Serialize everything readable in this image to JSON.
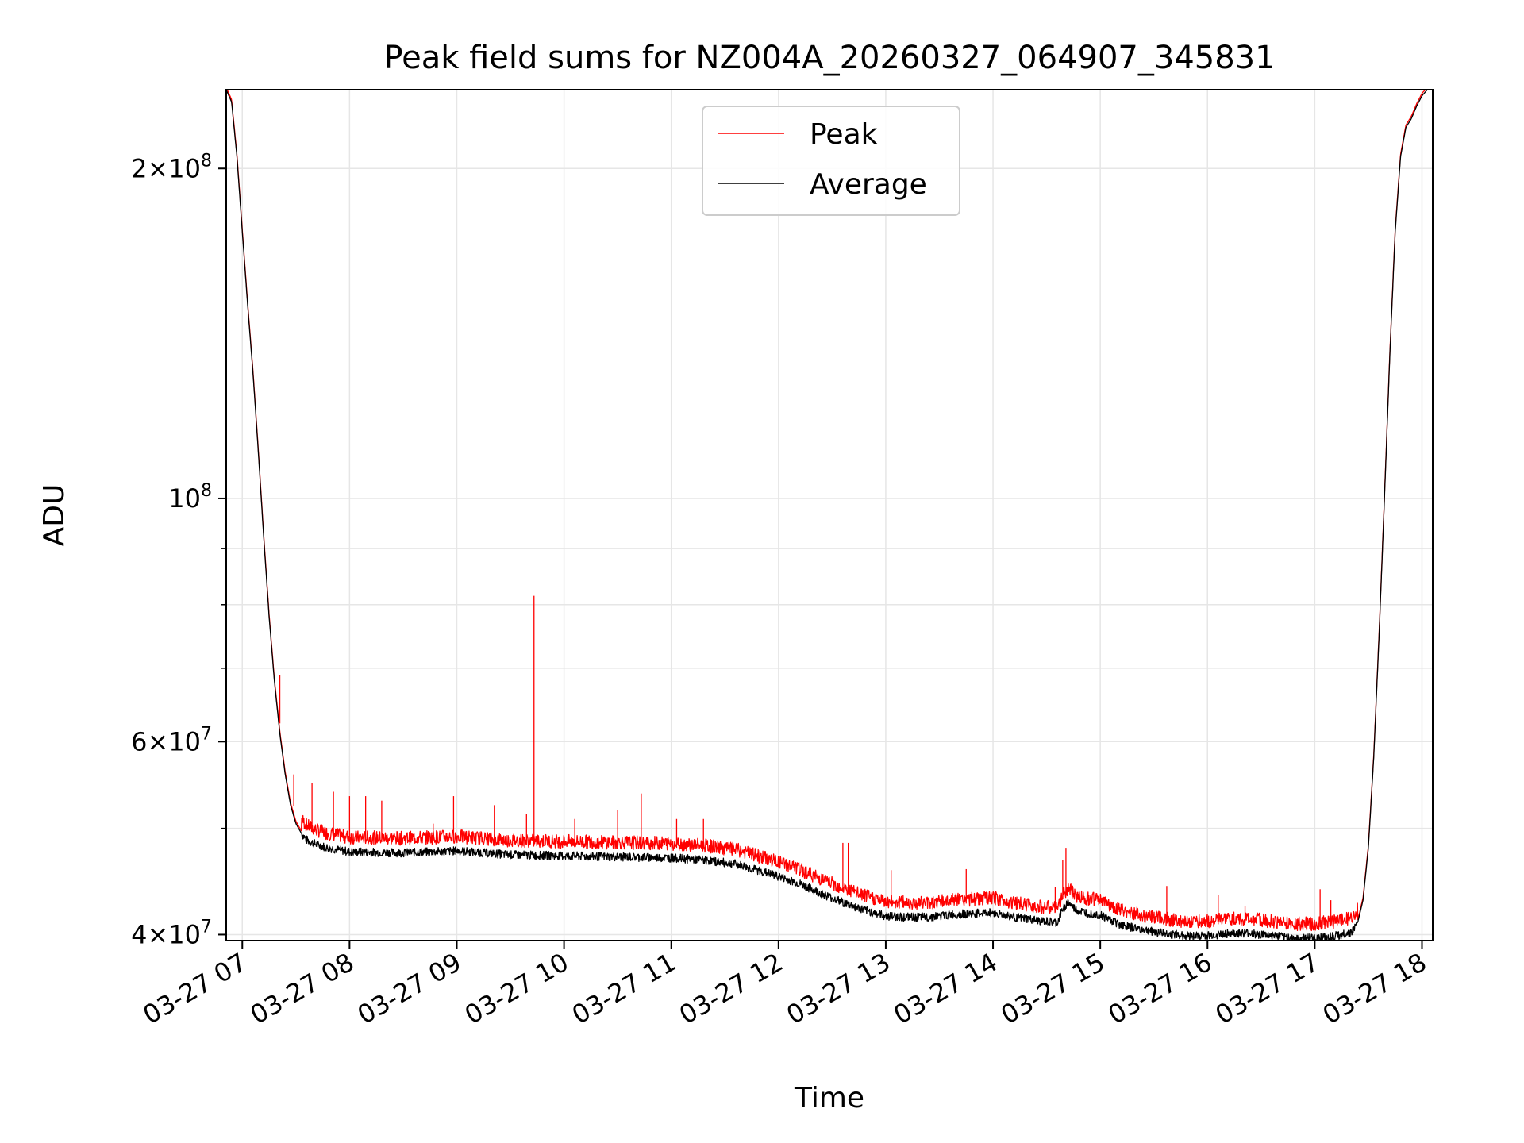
{
  "chart_data": {
    "type": "line",
    "title": "Peak field sums for NZ004A_20260327_064907_345831",
    "xlabel": "Time",
    "ylabel": "ADU",
    "yscale": "log",
    "ylim": [
      39500000,
      236000000
    ],
    "xlim_hours": [
      6.85,
      18.1
    ],
    "grid": true,
    "legend": {
      "location": "upper center",
      "entries": [
        "Peak",
        "Average"
      ]
    },
    "x_ticks": [
      {
        "hour": 7,
        "label": "03-27 07"
      },
      {
        "hour": 8,
        "label": "03-27 08"
      },
      {
        "hour": 9,
        "label": "03-27 09"
      },
      {
        "hour": 10,
        "label": "03-27 10"
      },
      {
        "hour": 11,
        "label": "03-27 11"
      },
      {
        "hour": 12,
        "label": "03-27 12"
      },
      {
        "hour": 13,
        "label": "03-27 13"
      },
      {
        "hour": 14,
        "label": "03-27 14"
      },
      {
        "hour": 15,
        "label": "03-27 15"
      },
      {
        "hour": 16,
        "label": "03-27 16"
      },
      {
        "hour": 17,
        "label": "03-27 17"
      },
      {
        "hour": 18,
        "label": "03-27 18"
      }
    ],
    "y_major_ticks": [
      {
        "value": 40000000,
        "mant": "4",
        "exp": "7"
      },
      {
        "value": 60000000,
        "mant": "6",
        "exp": "7"
      },
      {
        "value": 100000000,
        "mant": "",
        "exp": "8"
      },
      {
        "value": 200000000,
        "mant": "2",
        "exp": "8"
      }
    ],
    "y_minor_grid": [
      50000000,
      70000000,
      80000000,
      90000000
    ],
    "series": [
      {
        "name": "Average",
        "color": "#000000",
        "x_hours": [
          6.85,
          6.9,
          6.95,
          7.0,
          7.05,
          7.1,
          7.15,
          7.2,
          7.25,
          7.3,
          7.35,
          7.4,
          7.45,
          7.5,
          7.55,
          7.6,
          7.7,
          7.8,
          8.0,
          8.5,
          9.0,
          9.5,
          10.0,
          10.5,
          11.0,
          11.3,
          11.6,
          11.8,
          12.0,
          12.2,
          12.4,
          12.6,
          12.8,
          13.0,
          13.2,
          13.4,
          13.6,
          13.8,
          14.0,
          14.2,
          14.4,
          14.6,
          14.65,
          14.7,
          14.75,
          14.8,
          15.0,
          15.2,
          15.4,
          15.6,
          15.8,
          16.0,
          16.2,
          16.4,
          16.6,
          16.8,
          17.0,
          17.2,
          17.35,
          17.4,
          17.45,
          17.5,
          17.55,
          17.6,
          17.65,
          17.7,
          17.75,
          17.8,
          17.85,
          17.9,
          17.95,
          18.0,
          18.05,
          18.1
        ],
        "values": [
          236000000,
          230000000,
          205000000,
          175000000,
          150000000,
          130000000,
          110000000,
          92000000,
          78000000,
          68000000,
          61000000,
          56000000,
          52500000,
          50500000,
          49500000,
          48800000,
          48300000,
          48000000,
          47600000,
          47500000,
          47700000,
          47300000,
          47200000,
          47100000,
          47000000,
          46800000,
          46400000,
          45800000,
          45200000,
          44500000,
          43600000,
          42800000,
          42100000,
          41600000,
          41500000,
          41500000,
          41700000,
          41800000,
          41900000,
          41500000,
          41200000,
          41000000,
          42200000,
          42800000,
          42300000,
          42000000,
          41700000,
          40800000,
          40400000,
          40100000,
          39900000,
          39900000,
          40100000,
          40100000,
          39900000,
          39700000,
          39700000,
          39900000,
          40200000,
          41000000,
          43000000,
          48000000,
          58000000,
          75000000,
          100000000,
          135000000,
          175000000,
          205000000,
          218000000,
          222000000,
          228000000,
          233000000,
          236000000,
          236000000
        ]
      },
      {
        "name": "Peak",
        "color": "#ff0000",
        "offset_ratio": 1.022,
        "spikes": [
          {
            "hour": 7.35,
            "value": 69000000
          },
          {
            "hour": 7.48,
            "value": 56000000
          },
          {
            "hour": 7.65,
            "value": 55000000
          },
          {
            "hour": 7.85,
            "value": 54000000
          },
          {
            "hour": 8.0,
            "value": 53500000
          },
          {
            "hour": 8.15,
            "value": 53500000
          },
          {
            "hour": 8.3,
            "value": 53000000
          },
          {
            "hour": 8.78,
            "value": 50500000
          },
          {
            "hour": 8.97,
            "value": 53500000
          },
          {
            "hour": 9.35,
            "value": 52500000
          },
          {
            "hour": 9.65,
            "value": 51500000
          },
          {
            "hour": 9.72,
            "value": 81500000
          },
          {
            "hour": 10.1,
            "value": 51000000
          },
          {
            "hour": 10.5,
            "value": 52000000
          },
          {
            "hour": 10.72,
            "value": 53800000
          },
          {
            "hour": 11.05,
            "value": 51000000
          },
          {
            "hour": 11.3,
            "value": 51000000
          },
          {
            "hour": 12.6,
            "value": 48500000
          },
          {
            "hour": 12.65,
            "value": 48500000
          },
          {
            "hour": 13.05,
            "value": 45800000
          },
          {
            "hour": 13.75,
            "value": 45900000
          },
          {
            "hour": 14.58,
            "value": 44200000
          },
          {
            "hour": 14.65,
            "value": 46800000
          },
          {
            "hour": 14.68,
            "value": 48000000
          },
          {
            "hour": 15.62,
            "value": 44300000
          },
          {
            "hour": 16.1,
            "value": 43500000
          },
          {
            "hour": 16.35,
            "value": 42500000
          },
          {
            "hour": 17.05,
            "value": 44000000
          },
          {
            "hour": 17.15,
            "value": 43000000
          }
        ]
      }
    ]
  }
}
